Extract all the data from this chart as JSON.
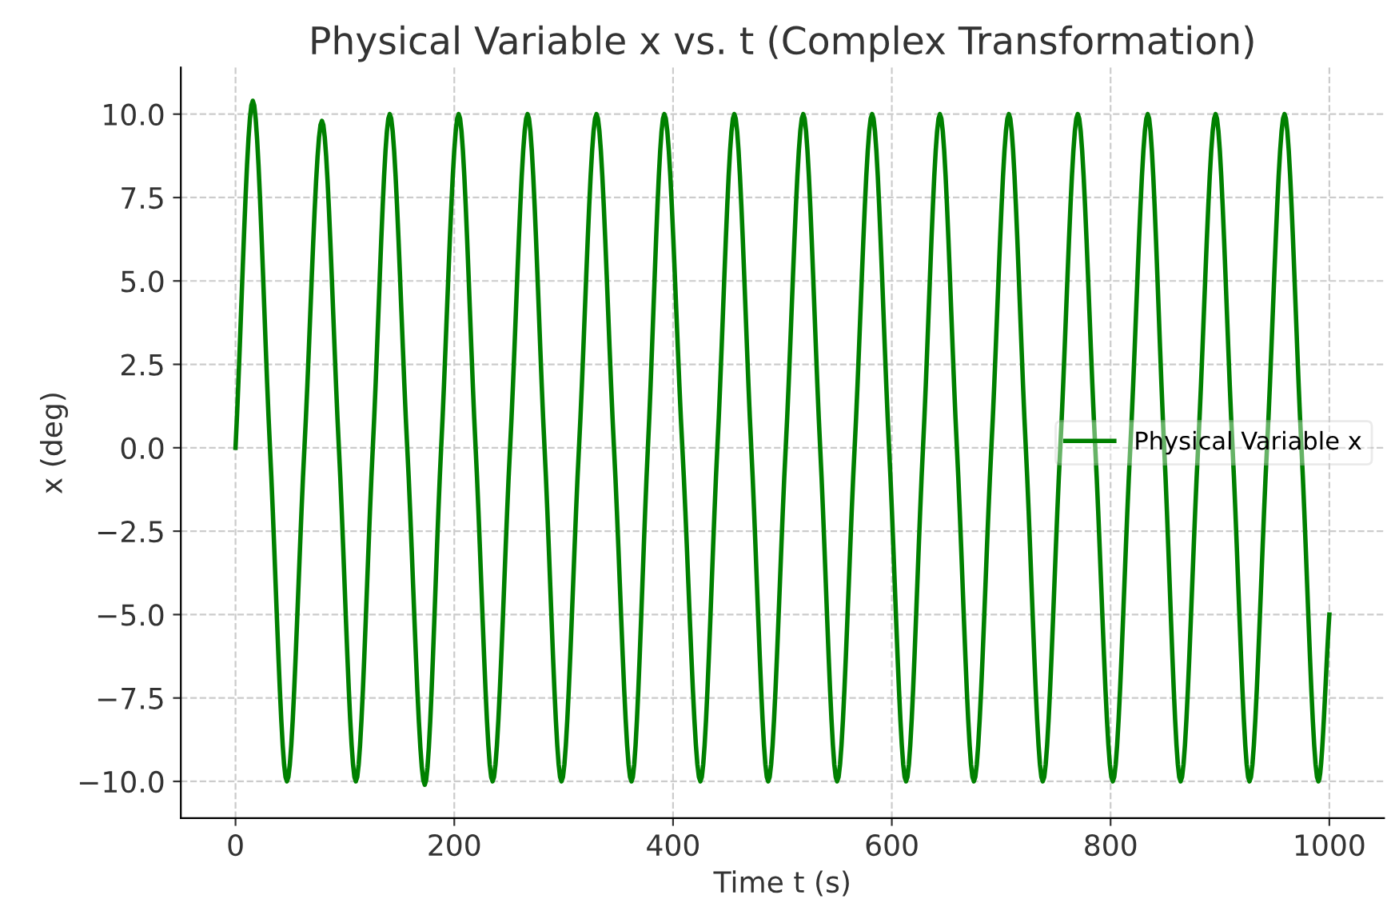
{
  "chart_data": {
    "type": "line",
    "title": "Physical Variable x vs. t (Complex Transformation)",
    "xlabel": "Time t (s)",
    "ylabel": "x (deg)",
    "series": [
      {
        "name": "Physical Variable x",
        "color": "#008000",
        "x": [
          0,
          15.8,
          31.5,
          47,
          63,
          79,
          94.5,
          110,
          125.5,
          141,
          157,
          173,
          188,
          204,
          219.5,
          235,
          251,
          267,
          282.5,
          298,
          314,
          330,
          346,
          362,
          377,
          392,
          408.5,
          425,
          440.5,
          456,
          471.5,
          487,
          503,
          519,
          534.5,
          550,
          566,
          582,
          597.5,
          613,
          628.5,
          644,
          659.5,
          675,
          691,
          707,
          722.5,
          738,
          754,
          770,
          786,
          802,
          818,
          834,
          849,
          864,
          880,
          896,
          911.5,
          927,
          943,
          959,
          974.5,
          990,
          1000
        ],
        "values": [
          0,
          10.4,
          0,
          -10.0,
          0,
          9.8,
          0,
          -10.0,
          0,
          10.0,
          0,
          -10.1,
          0,
          10.0,
          0,
          -10.0,
          0,
          10.0,
          0,
          -10.0,
          0,
          10.0,
          0,
          -10.0,
          0,
          10.0,
          0,
          -10.0,
          0,
          10.0,
          0,
          -10.0,
          0,
          10.0,
          0,
          -10.0,
          0,
          10.0,
          0,
          -10.0,
          0,
          10.0,
          0,
          -10.0,
          0,
          10.0,
          0,
          -10.0,
          0,
          10.0,
          0,
          -10.0,
          0,
          10.0,
          0,
          -10.0,
          0,
          10.0,
          0,
          -10.0,
          0,
          10.0,
          0,
          -10.0,
          -5.0
        ]
      }
    ],
    "xlim": [
      -50,
      1050
    ],
    "ylim": [
      -11.1,
      11.4
    ],
    "xticks": [
      0,
      200,
      400,
      600,
      800,
      1000
    ],
    "yticks": [
      {
        "value": -10,
        "label": "−10.0"
      },
      {
        "value": -7.5,
        "label": "−7.5"
      },
      {
        "value": -5,
        "label": "−5.0"
      },
      {
        "value": -2.5,
        "label": "−2.5"
      },
      {
        "value": 0,
        "label": "0.0"
      },
      {
        "value": 2.5,
        "label": "2.5"
      },
      {
        "value": 5,
        "label": "5.0"
      },
      {
        "value": 7.5,
        "label": "7.5"
      },
      {
        "value": 10,
        "label": "10.0"
      }
    ],
    "grid": true,
    "legend": "center right",
    "marker": "none",
    "line_style": "solid"
  }
}
